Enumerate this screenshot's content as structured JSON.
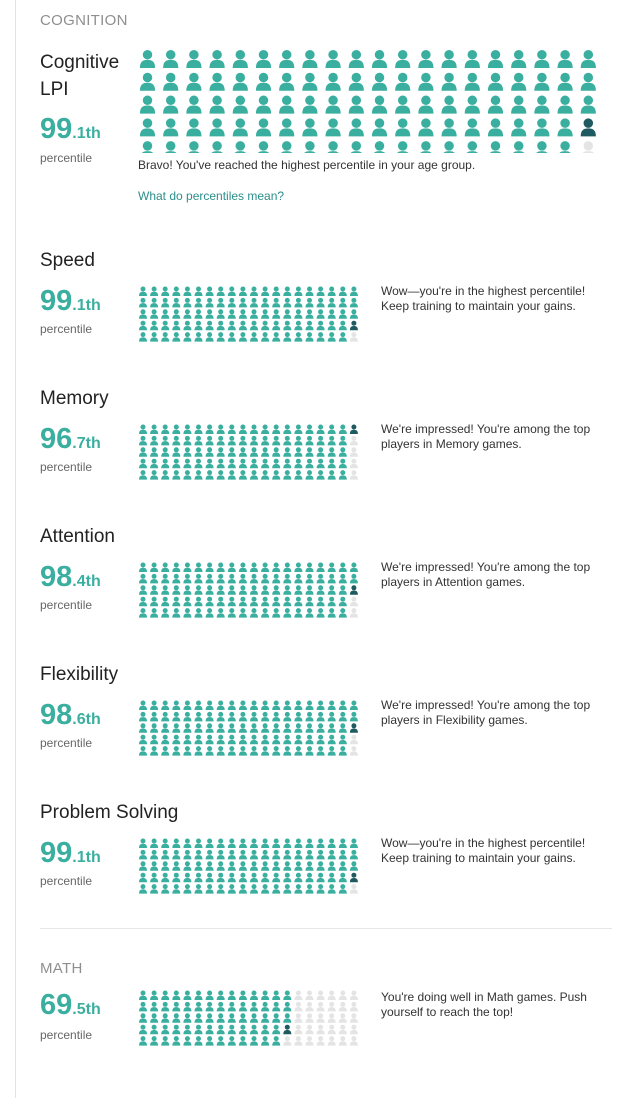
{
  "colors": {
    "accent": "#3aaf9f",
    "marker": "#1e5a5f",
    "empty": "#e4e4e4",
    "link": "#2a8f8a",
    "header": "#8f8f8f"
  },
  "icons": {
    "figure": "person-icon"
  },
  "sections": {
    "cognition": "COGNITION",
    "math": "MATH"
  },
  "lpi": {
    "title": "Cognitive LPI",
    "pct_whole": "99",
    "pct_fraction": ".1th",
    "pct_label": "percentile",
    "value": 99.1,
    "message": "Bravo! You've reached the highest percentile in your age group.",
    "link": "What do percentiles mean?"
  },
  "metrics": [
    {
      "title": "Speed",
      "pct_whole": "99",
      "pct_fraction": ".1th",
      "pct_label": "percentile",
      "value": 99.1,
      "message_line1": "Wow—you're in the highest percentile!",
      "message_line2": "Keep training to maintain your gains."
    },
    {
      "title": "Memory",
      "pct_whole": "96",
      "pct_fraction": ".7th",
      "pct_label": "percentile",
      "value": 96.7,
      "message_line1": "We're impressed! You're among the top",
      "message_line2": "players in Memory games."
    },
    {
      "title": "Attention",
      "pct_whole": "98",
      "pct_fraction": ".4th",
      "pct_label": "percentile",
      "value": 98.4,
      "message_line1": "We're impressed! You're among the top",
      "message_line2": "players in Attention games."
    },
    {
      "title": "Flexibility",
      "pct_whole": "98",
      "pct_fraction": ".6th",
      "pct_label": "percentile",
      "value": 98.6,
      "message_line1": "We're impressed! You're among the top",
      "message_line2": "players in Flexibility games."
    },
    {
      "title": "Problem Solving",
      "pct_whole": "99",
      "pct_fraction": ".1th",
      "pct_label": "percentile",
      "value": 99.1,
      "message_line1": "Wow—you're in the highest percentile!",
      "message_line2": "Keep training to maintain your gains."
    }
  ],
  "math_metric": {
    "pct_whole": "69",
    "pct_fraction": ".5th",
    "pct_label": "percentile",
    "value": 69.5,
    "message_line1": "You're doing well in Math games. Push",
    "message_line2": "yourself to reach the top!"
  }
}
